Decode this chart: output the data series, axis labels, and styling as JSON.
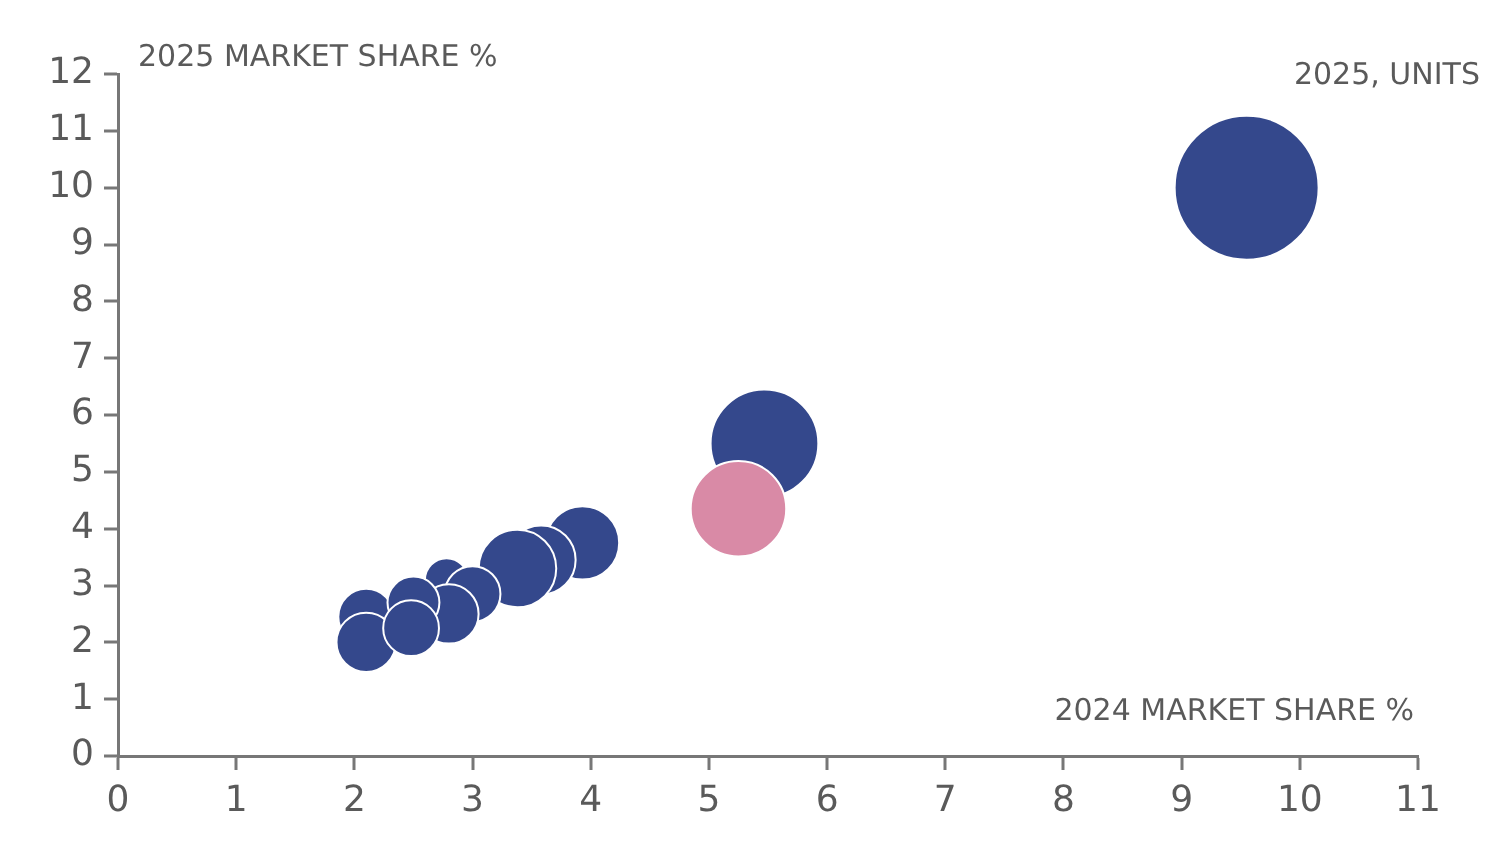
{
  "chart_data": {
    "type": "bubble",
    "xlabel": "2024 MARKET SHARE %",
    "ylabel": "2025 MARKET SHARE %",
    "annotations": [
      "2025, UNITS"
    ],
    "series": [
      {
        "x": [
          3.93,
          3.58,
          3.38,
          2.78,
          3.0,
          2.8,
          2.1,
          2.1,
          2.5,
          2.48,
          9.55,
          5.47,
          5.25
        ],
        "values": [
          3.75,
          3.45,
          3.3,
          3.1,
          2.85,
          2.5,
          2.45,
          2.0,
          2.7,
          2.25,
          10.0,
          5.5,
          4.35
        ],
        "sizes": [
          0.26,
          0.23,
          0.29,
          0.09,
          0.15,
          0.17,
          0.15,
          0.17,
          0.13,
          0.15,
          1,
          0.56,
          0.44
        ],
        "colors": [
          "#34488c",
          "#34488c",
          "#34488c",
          "#34488c",
          "#34488c",
          "#34488c",
          "#34488c",
          "#34488c",
          "#34488c",
          "#34488c",
          "#34488c",
          "#34488c",
          "#d98aa6"
        ]
      }
    ],
    "xlim": [
      0,
      11
    ],
    "xticks": [
      0,
      1,
      2,
      3,
      4,
      5,
      6,
      7,
      8,
      9,
      10,
      11
    ],
    "ylim": [
      0,
      12
    ],
    "yticks": [
      0,
      1,
      2,
      3,
      4,
      5,
      6,
      7,
      8,
      9,
      10,
      11,
      12
    ],
    "grid": false,
    "legend": false
  }
}
